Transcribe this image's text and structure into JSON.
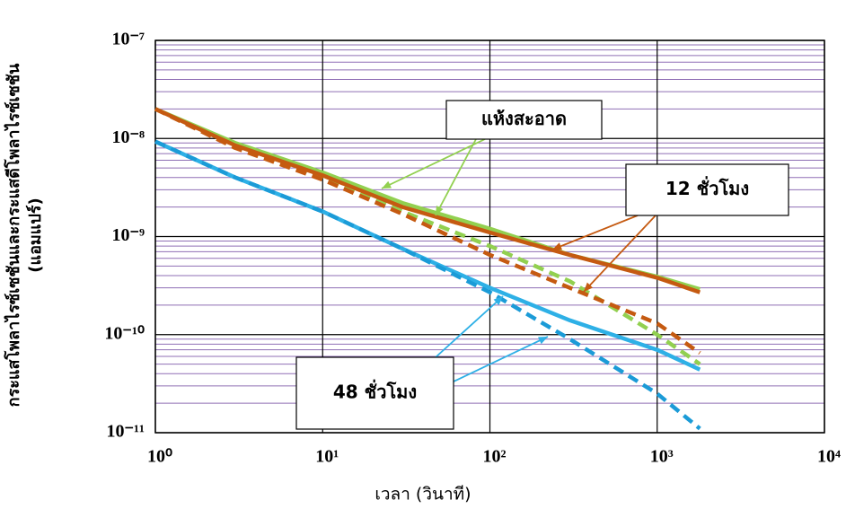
{
  "chart_data": {
    "type": "line",
    "x_label": "เวลา (วินาที)",
    "y_label": [
      "กระแสโพลาไรซ์เซชันและกระแสดีโพลาไรซ์เซชัน",
      "(แอมแปร์)"
    ],
    "x": [
      1,
      3,
      10,
      30,
      100,
      300,
      1000,
      1800
    ],
    "series": [
      {
        "color": "#92d050",
        "style": "solid",
        "values": [
          2e-08,
          9e-09,
          4.5e-09,
          2.2e-09,
          1.2e-09,
          6.5e-10,
          3.9e-10,
          2.9e-10
        ]
      },
      {
        "color": "#92d050",
        "style": "dashed",
        "values": [
          2e-08,
          8.5e-09,
          4e-09,
          1.8e-09,
          8e-10,
          3.5e-10,
          1e-10,
          5e-11
        ]
      },
      {
        "color": "#c55a11",
        "style": "solid",
        "values": [
          2e-08,
          8.5e-09,
          4.2e-09,
          2e-09,
          1.1e-09,
          6.5e-10,
          3.8e-10,
          2.7e-10
        ]
      },
      {
        "color": "#c55a11",
        "style": "dashed",
        "values": [
          2e-08,
          8e-09,
          3.8e-09,
          1.7e-09,
          6.5e-10,
          3e-10,
          1.3e-10,
          6.5e-11
        ]
      },
      {
        "color": "#2eb0e6",
        "style": "solid",
        "values": [
          9.3e-09,
          4e-09,
          1.8e-09,
          7.5e-10,
          3e-10,
          1.4e-10,
          7e-11,
          4.4e-11
        ]
      },
      {
        "color": "#1b9bd7",
        "style": "dashed",
        "values": [
          9.3e-09,
          4e-09,
          1.8e-09,
          7.5e-10,
          2.7e-10,
          9e-11,
          2.5e-11,
          1.1e-11
        ]
      }
    ],
    "annotations": [
      {
        "text": "แห้งสะอาด",
        "color": "#92d050"
      },
      {
        "text": "12 ชั่วโมง",
        "color": "#c55a11"
      },
      {
        "text": "48 ชั่วโมง",
        "color": "#2eb0e6"
      }
    ],
    "xscale": "log",
    "yscale": "log",
    "xlim": [
      1,
      10000
    ],
    "ylim": [
      1e-11,
      1e-07
    ],
    "xticks": [
      {
        "value": 1,
        "label": "10⁰"
      },
      {
        "value": 10,
        "label": "10¹"
      },
      {
        "value": 100,
        "label": "10²"
      },
      {
        "value": 1000,
        "label": "10³"
      },
      {
        "value": 10000,
        "label": "10⁴"
      }
    ],
    "yticks": [
      {
        "value": 1e-11,
        "label": "10⁻¹¹"
      },
      {
        "value": 1e-10,
        "label": "10⁻¹⁰"
      },
      {
        "value": 1e-09,
        "label": "10⁻⁹"
      },
      {
        "value": 1e-08,
        "label": "10⁻⁸"
      },
      {
        "value": 1e-07,
        "label": "10⁻⁷"
      }
    ],
    "grid": true,
    "minor_grid": true
  }
}
